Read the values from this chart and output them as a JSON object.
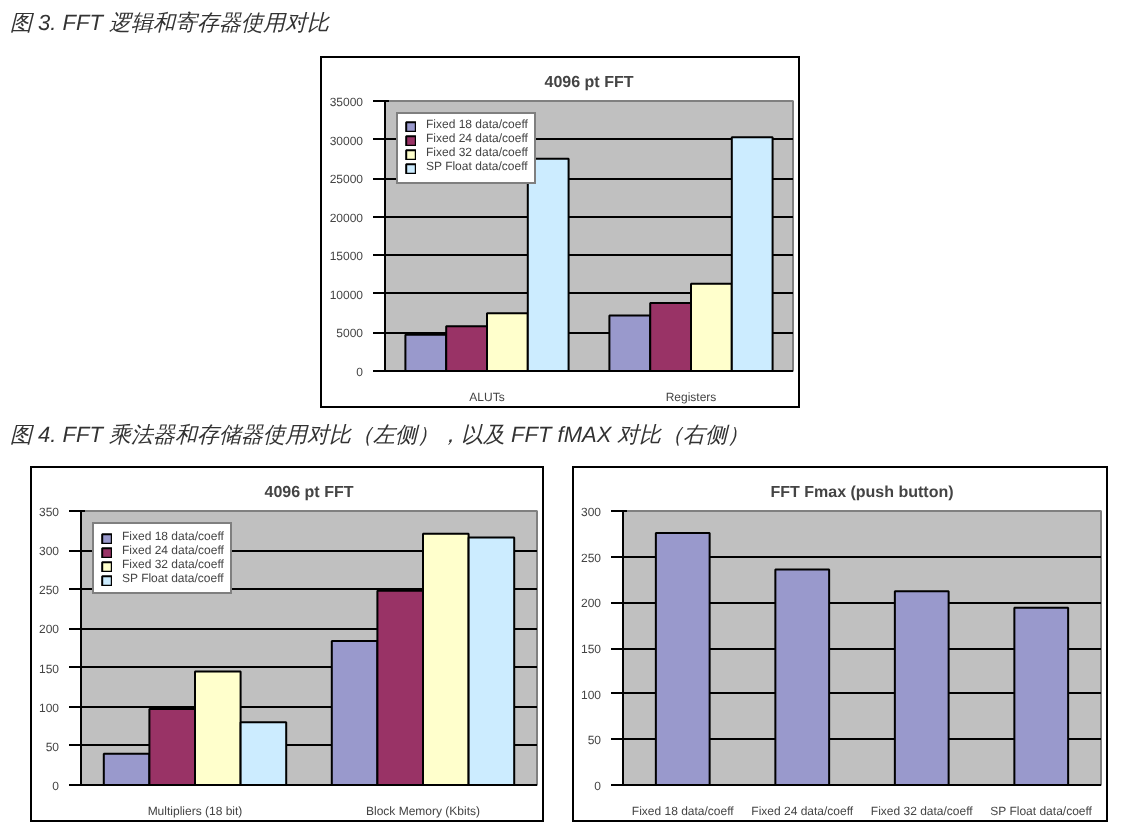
{
  "chart_data": [
    {
      "type": "bar",
      "title": "4096 pt FFT",
      "annotations": [
        "图 3.  FFT 逻辑和寄存器使用对比"
      ],
      "categories": [
        "ALUTs",
        "Registers"
      ],
      "series": [
        {
          "name": "Fixed 18 data/coeff",
          "color": "#9999cc",
          "values": [
            4700,
            7200
          ]
        },
        {
          "name": "Fixed 24 data/coeff",
          "color": "#993366",
          "values": [
            5800,
            8800
          ]
        },
        {
          "name": "Fixed 32 data/coeff",
          "color": "#ffffcc",
          "values": [
            7500,
            11300
          ]
        },
        {
          "name": "SP Float data/coeff",
          "color": "#ccecff",
          "values": [
            27500,
            30300
          ]
        }
      ],
      "ylim": [
        0,
        35000
      ],
      "yticks": [
        0,
        5000,
        10000,
        15000,
        20000,
        25000,
        30000,
        35000
      ],
      "grid": "y",
      "legend": "top left"
    },
    {
      "type": "bar",
      "title": "4096 pt FFT",
      "annotations": [
        "图 4.  FFT 乘法器和存储器使用对比（左侧），以及 FFT fMAX 对比（右侧）"
      ],
      "categories": [
        "Multipliers (18 bit)",
        "Block Memory (Kbits)"
      ],
      "series": [
        {
          "name": "Fixed 18 data/coeff",
          "color": "#9999cc",
          "values": [
            40,
            184
          ]
        },
        {
          "name": "Fixed 24 data/coeff",
          "color": "#993366",
          "values": [
            97,
            248
          ]
        },
        {
          "name": "Fixed 32 data/coeff",
          "color": "#ffffcc",
          "values": [
            145,
            321
          ]
        },
        {
          "name": "SP Float data/coeff",
          "color": "#ccecff",
          "values": [
            80,
            316
          ]
        }
      ],
      "ylim": [
        0,
        350
      ],
      "yticks": [
        0,
        50,
        100,
        150,
        200,
        250,
        300,
        350
      ],
      "grid": "y",
      "legend": "top left"
    },
    {
      "type": "bar",
      "title": "FFT Fmax (push button)",
      "categories": [
        "Fixed 18 data/coeff",
        "Fixed 24 data/coeff",
        "Fixed 32 data/coeff",
        "SP Float data/coeff"
      ],
      "values": [
        276,
        236,
        212,
        194
      ],
      "color": "#9999cc",
      "ylim": [
        0,
        300
      ],
      "yticks": [
        0,
        50,
        100,
        150,
        200,
        250,
        300
      ],
      "grid": "y"
    }
  ]
}
